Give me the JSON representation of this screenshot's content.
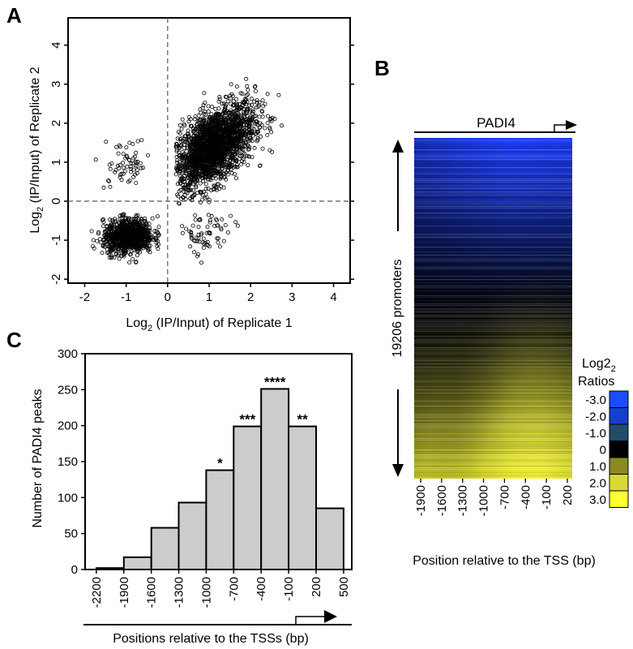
{
  "panels": {
    "a": {
      "letter": "A"
    },
    "b": {
      "letter": "B"
    },
    "c": {
      "letter": "C"
    }
  },
  "chart_data": [
    {
      "type": "scatter",
      "panel": "A",
      "xlabel": "Log2 (IP/Input) of Replicate 1",
      "ylabel": "Log2 (IP/Input) of Replicate 2",
      "xlim": [
        -2.4,
        4.4
      ],
      "ylim": [
        -2.1,
        4.7
      ],
      "xticks": [
        -2,
        -1,
        0,
        1,
        2,
        3,
        4
      ],
      "yticks": [
        -2,
        -1,
        0,
        1,
        2,
        3,
        4
      ],
      "reference_lines": {
        "x": 0,
        "y": 0,
        "style": "dashed"
      },
      "clusters": [
        {
          "quadrant": "upper-right",
          "center": [
            1.1,
            1.4
          ],
          "spread": [
            0.5,
            0.55
          ],
          "extent_x": [
            0.2,
            4.0
          ],
          "extent_y": [
            -0.1,
            4.5
          ]
        },
        {
          "quadrant": "lower-left",
          "center": [
            -0.95,
            -0.9
          ],
          "spread": [
            0.3,
            0.22
          ],
          "extent_x": [
            -2.0,
            -0.2
          ],
          "extent_y": [
            -1.7,
            -0.3
          ]
        },
        {
          "quadrant": "upper-left",
          "center": [
            -1.0,
            0.9
          ],
          "spread": [
            0.3,
            0.35
          ],
          "extent_x": [
            -1.8,
            -0.4
          ],
          "extent_y": [
            0.2,
            1.8
          ]
        },
        {
          "quadrant": "lower-right",
          "center": [
            0.9,
            -0.85
          ],
          "spread": [
            0.35,
            0.3
          ],
          "extent_x": [
            0.3,
            2.0
          ],
          "extent_y": [
            -1.6,
            -0.3
          ]
        }
      ],
      "marker": "open-circle"
    },
    {
      "type": "heatmap",
      "panel": "B",
      "title": "PADI4",
      "ylabel": "19206 promoters",
      "xlabel": "Position relative to the TSS (bp)",
      "x_ticks": [
        "-1900",
        "-1600",
        "-1300",
        "-1000",
        "-700",
        "-400",
        "-100",
        "200"
      ],
      "rows_description": "promoters sorted from lowest (top, blue) to highest (bottom, yellow) log2 ratio",
      "colorbar": {
        "title": "Log2",
        "title2": "Ratios",
        "values": [
          "-3.0",
          "-2.0",
          "-1.0",
          "0",
          "1.0",
          "2.0",
          "3.0"
        ],
        "colors": [
          "#1a4dff",
          "#1540cc",
          "#1f4d6b",
          "#000000",
          "#8a8a22",
          "#d9d936",
          "#ffff33"
        ]
      }
    },
    {
      "type": "bar",
      "panel": "C",
      "ylabel": "Number of PADI4 peaks",
      "xlabel": "Positions relative to the TSSs (bp)",
      "ylim": [
        0,
        300
      ],
      "yticks": [
        0,
        50,
        100,
        150,
        200,
        250,
        300
      ],
      "bin_edges": [
        "-2200",
        "-1900",
        "-1600",
        "-1300",
        "-1000",
        "-700",
        "-400",
        "-100",
        "200",
        "500"
      ],
      "values": [
        2,
        17,
        58,
        93,
        138,
        199,
        251,
        199,
        85
      ],
      "significance": [
        "",
        "",
        "",
        "",
        "*",
        "***",
        "****",
        "**",
        ""
      ],
      "bar_color": "#cccccc"
    }
  ]
}
